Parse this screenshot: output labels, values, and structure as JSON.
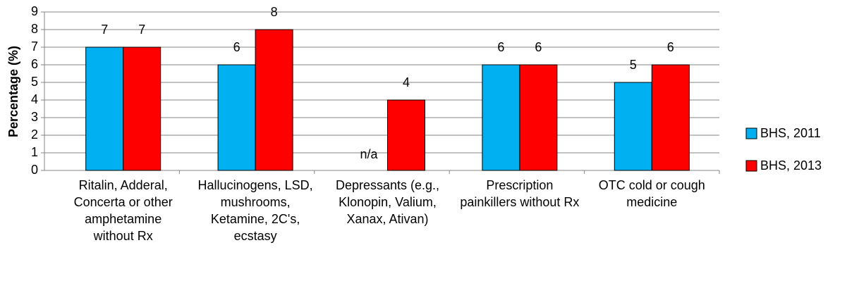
{
  "chart_data": {
    "type": "bar",
    "categories": [
      "Ritalin, Adderal, Concerta or other amphetamine without Rx",
      "Hallucinogens, LSD, mushrooms, Ketamine, 2C's, ecstasy",
      "Depressants (e.g., Klonopin, Valium, Xanax, Ativan)",
      "Prescription painkillers without Rx",
      "OTC cold or cough medicine"
    ],
    "series": [
      {
        "name": "BHS, 2011",
        "color": "#00b0f0",
        "values": [
          7,
          6,
          null,
          6,
          5
        ],
        "value_labels": [
          "7",
          "6",
          "n/a",
          "6",
          "5"
        ]
      },
      {
        "name": "BHS, 2013",
        "color": "#ff0000",
        "values": [
          7,
          8,
          4,
          6,
          6
        ]
      }
    ],
    "y_label": "Percentage (%)",
    "ylim": [
      0,
      9
    ],
    "yticks": [
      0,
      1,
      2,
      3,
      4,
      5,
      6,
      7,
      8,
      9
    ],
    "grid": true,
    "legend": "right"
  }
}
